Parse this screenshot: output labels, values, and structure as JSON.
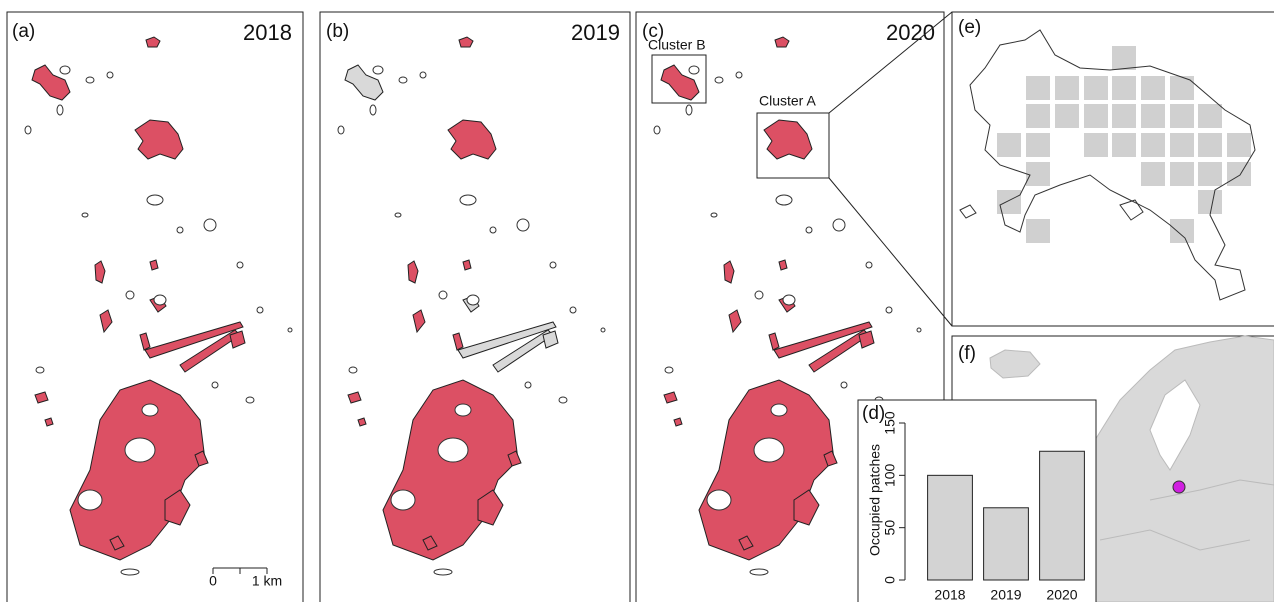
{
  "panels": {
    "a": {
      "label": "(a)",
      "year": "2018",
      "scale_bar": {
        "start": "0",
        "end": "1 km"
      }
    },
    "b": {
      "label": "(b)",
      "year": "2019"
    },
    "c": {
      "label": "(c)",
      "year": "2020",
      "clusters": [
        "Cluster B",
        "Cluster A"
      ]
    },
    "e": {
      "label": "(e)"
    },
    "f": {
      "label": "(f)"
    }
  },
  "chart_data": {
    "type": "bar",
    "panel_label": "(d)",
    "y_label": "Occupied patches",
    "categories": [
      "2018",
      "2019",
      "2020"
    ],
    "values": [
      100,
      69,
      123
    ],
    "color": "#d3d3d3",
    "ylim": [
      0,
      150
    ],
    "yticks": [
      0,
      50,
      100,
      150
    ]
  }
}
